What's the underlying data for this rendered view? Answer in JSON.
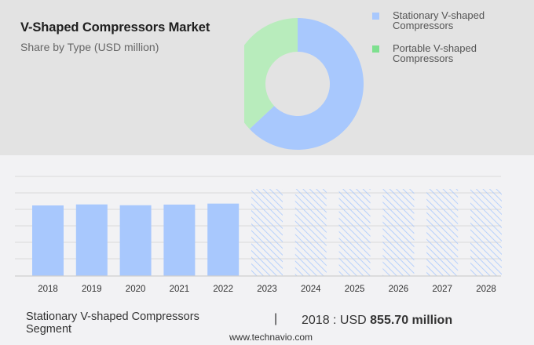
{
  "header": {
    "title": "V-Shaped Compressors Market",
    "subtitle": "Share by Type (USD million)"
  },
  "legend": [
    {
      "label_line1": "Stationary V-shaped",
      "label_line2": "Compressors",
      "color": "#a8c8fd"
    },
    {
      "label_line1": "Portable V-shaped",
      "label_line2": "Compressors",
      "color": "#7ee08f"
    }
  ],
  "footer": {
    "segment_line1": "Stationary V-shaped Compressors",
    "segment_line2": "Segment",
    "divider": "|",
    "value_prefix": "2018 : USD ",
    "value_bold": "855.70 million",
    "source": "www.technavio.com"
  },
  "chart_data": [
    {
      "type": "pie",
      "title": "V-Shaped Compressors Market",
      "subtitle": "Share by Type (USD million)",
      "donut": true,
      "labels": [
        "Stationary V-shaped Compressors",
        "Portable V-shaped Compressors"
      ],
      "values": [
        63,
        37
      ],
      "colors": [
        "#a8c8fd",
        "#b8ecbc"
      ],
      "legend_position": "right"
    },
    {
      "type": "bar",
      "title": "Stationary V-shaped Compressors Segment",
      "categories": [
        "2018",
        "2019",
        "2020",
        "2021",
        "2022",
        "2023",
        "2024",
        "2025",
        "2026",
        "2027",
        "2028"
      ],
      "values": [
        855.7,
        868,
        858,
        866,
        878,
        null,
        null,
        null,
        null,
        null,
        null
      ],
      "forecast": [
        false,
        false,
        false,
        false,
        false,
        true,
        true,
        true,
        true,
        true,
        true
      ],
      "annotation": "2018 : USD 855.70 million",
      "xlabel": "",
      "ylabel": "",
      "grid": true,
      "y_tick_labels_visible": false,
      "colors": {
        "actual": "#a8c8fd",
        "forecast_hatch": "#a8c8fd"
      }
    }
  ]
}
